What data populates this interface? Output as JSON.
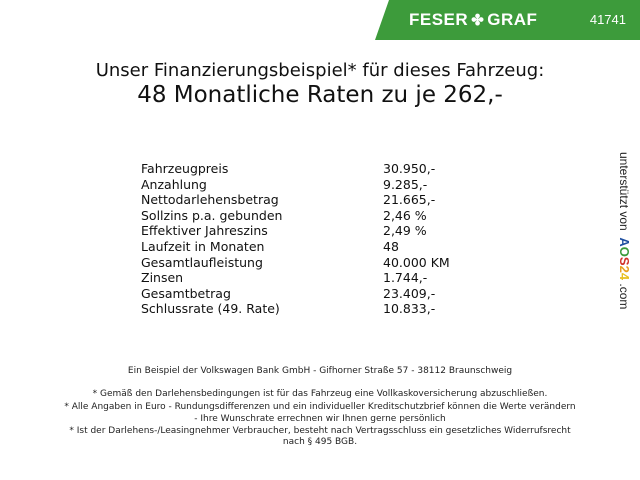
{
  "header": {
    "brand": "FESER",
    "brand2": "GRAF",
    "logo_icon": "clover-icon",
    "dealer_number": "41741",
    "accent_color": "#3d9b3b"
  },
  "title": {
    "line1": "Unser Finanzierungsbeispiel* für dieses Fahrzeug:",
    "line2": "48 Monatliche Raten zu je 262,-"
  },
  "rows": [
    {
      "label": "Fahrzeugpreis",
      "value": "30.950,-"
    },
    {
      "label": "Anzahlung",
      "value": "9.285,-"
    },
    {
      "label": "Nettodarlehensbetrag",
      "value": "21.665,-"
    },
    {
      "label": "Sollzins p.a. gebunden",
      "value": "2,46 %"
    },
    {
      "label": "Effektiver Jahreszins",
      "value": "2,49 %"
    },
    {
      "label": "Laufzeit in Monaten",
      "value": "48"
    },
    {
      "label": "Gesamtlaufleistung",
      "value": "40.000 KM"
    },
    {
      "label": "Zinsen",
      "value": "1.744,-"
    },
    {
      "label": "Gesamtbetrag",
      "value": "23.409,-"
    },
    {
      "label": "Schlussrate (49. Rate)",
      "value": "10.833,-"
    }
  ],
  "side": {
    "prefix": "unterstützt von",
    "a": "A",
    "o": "O",
    "s": "S",
    "n2": "2",
    "n4": "4",
    "suffix": ".com"
  },
  "footer": {
    "bank": "Ein Beispiel der Volkswagen Bank GmbH - Gifhorner Straße 57 - 38112 Braunschweig",
    "note1": "* Gemäß den Darlehensbedingungen ist für das Fahrzeug eine Vollkaskoversicherung abzuschließen.",
    "note2a": "* Alle Angaben in Euro - Rundungsdifferenzen und ein individueller Kreditschutzbrief können die Werte verändern",
    "note2b": "- Ihre Wunschrate errechnen wir Ihnen gerne persönlich",
    "note3a": "* Ist der Darlehens-/Leasingnehmer Verbraucher, besteht nach Vertragsschluss ein gesetzliches Widerrufsrecht",
    "note3b": "nach § 495 BGB."
  }
}
